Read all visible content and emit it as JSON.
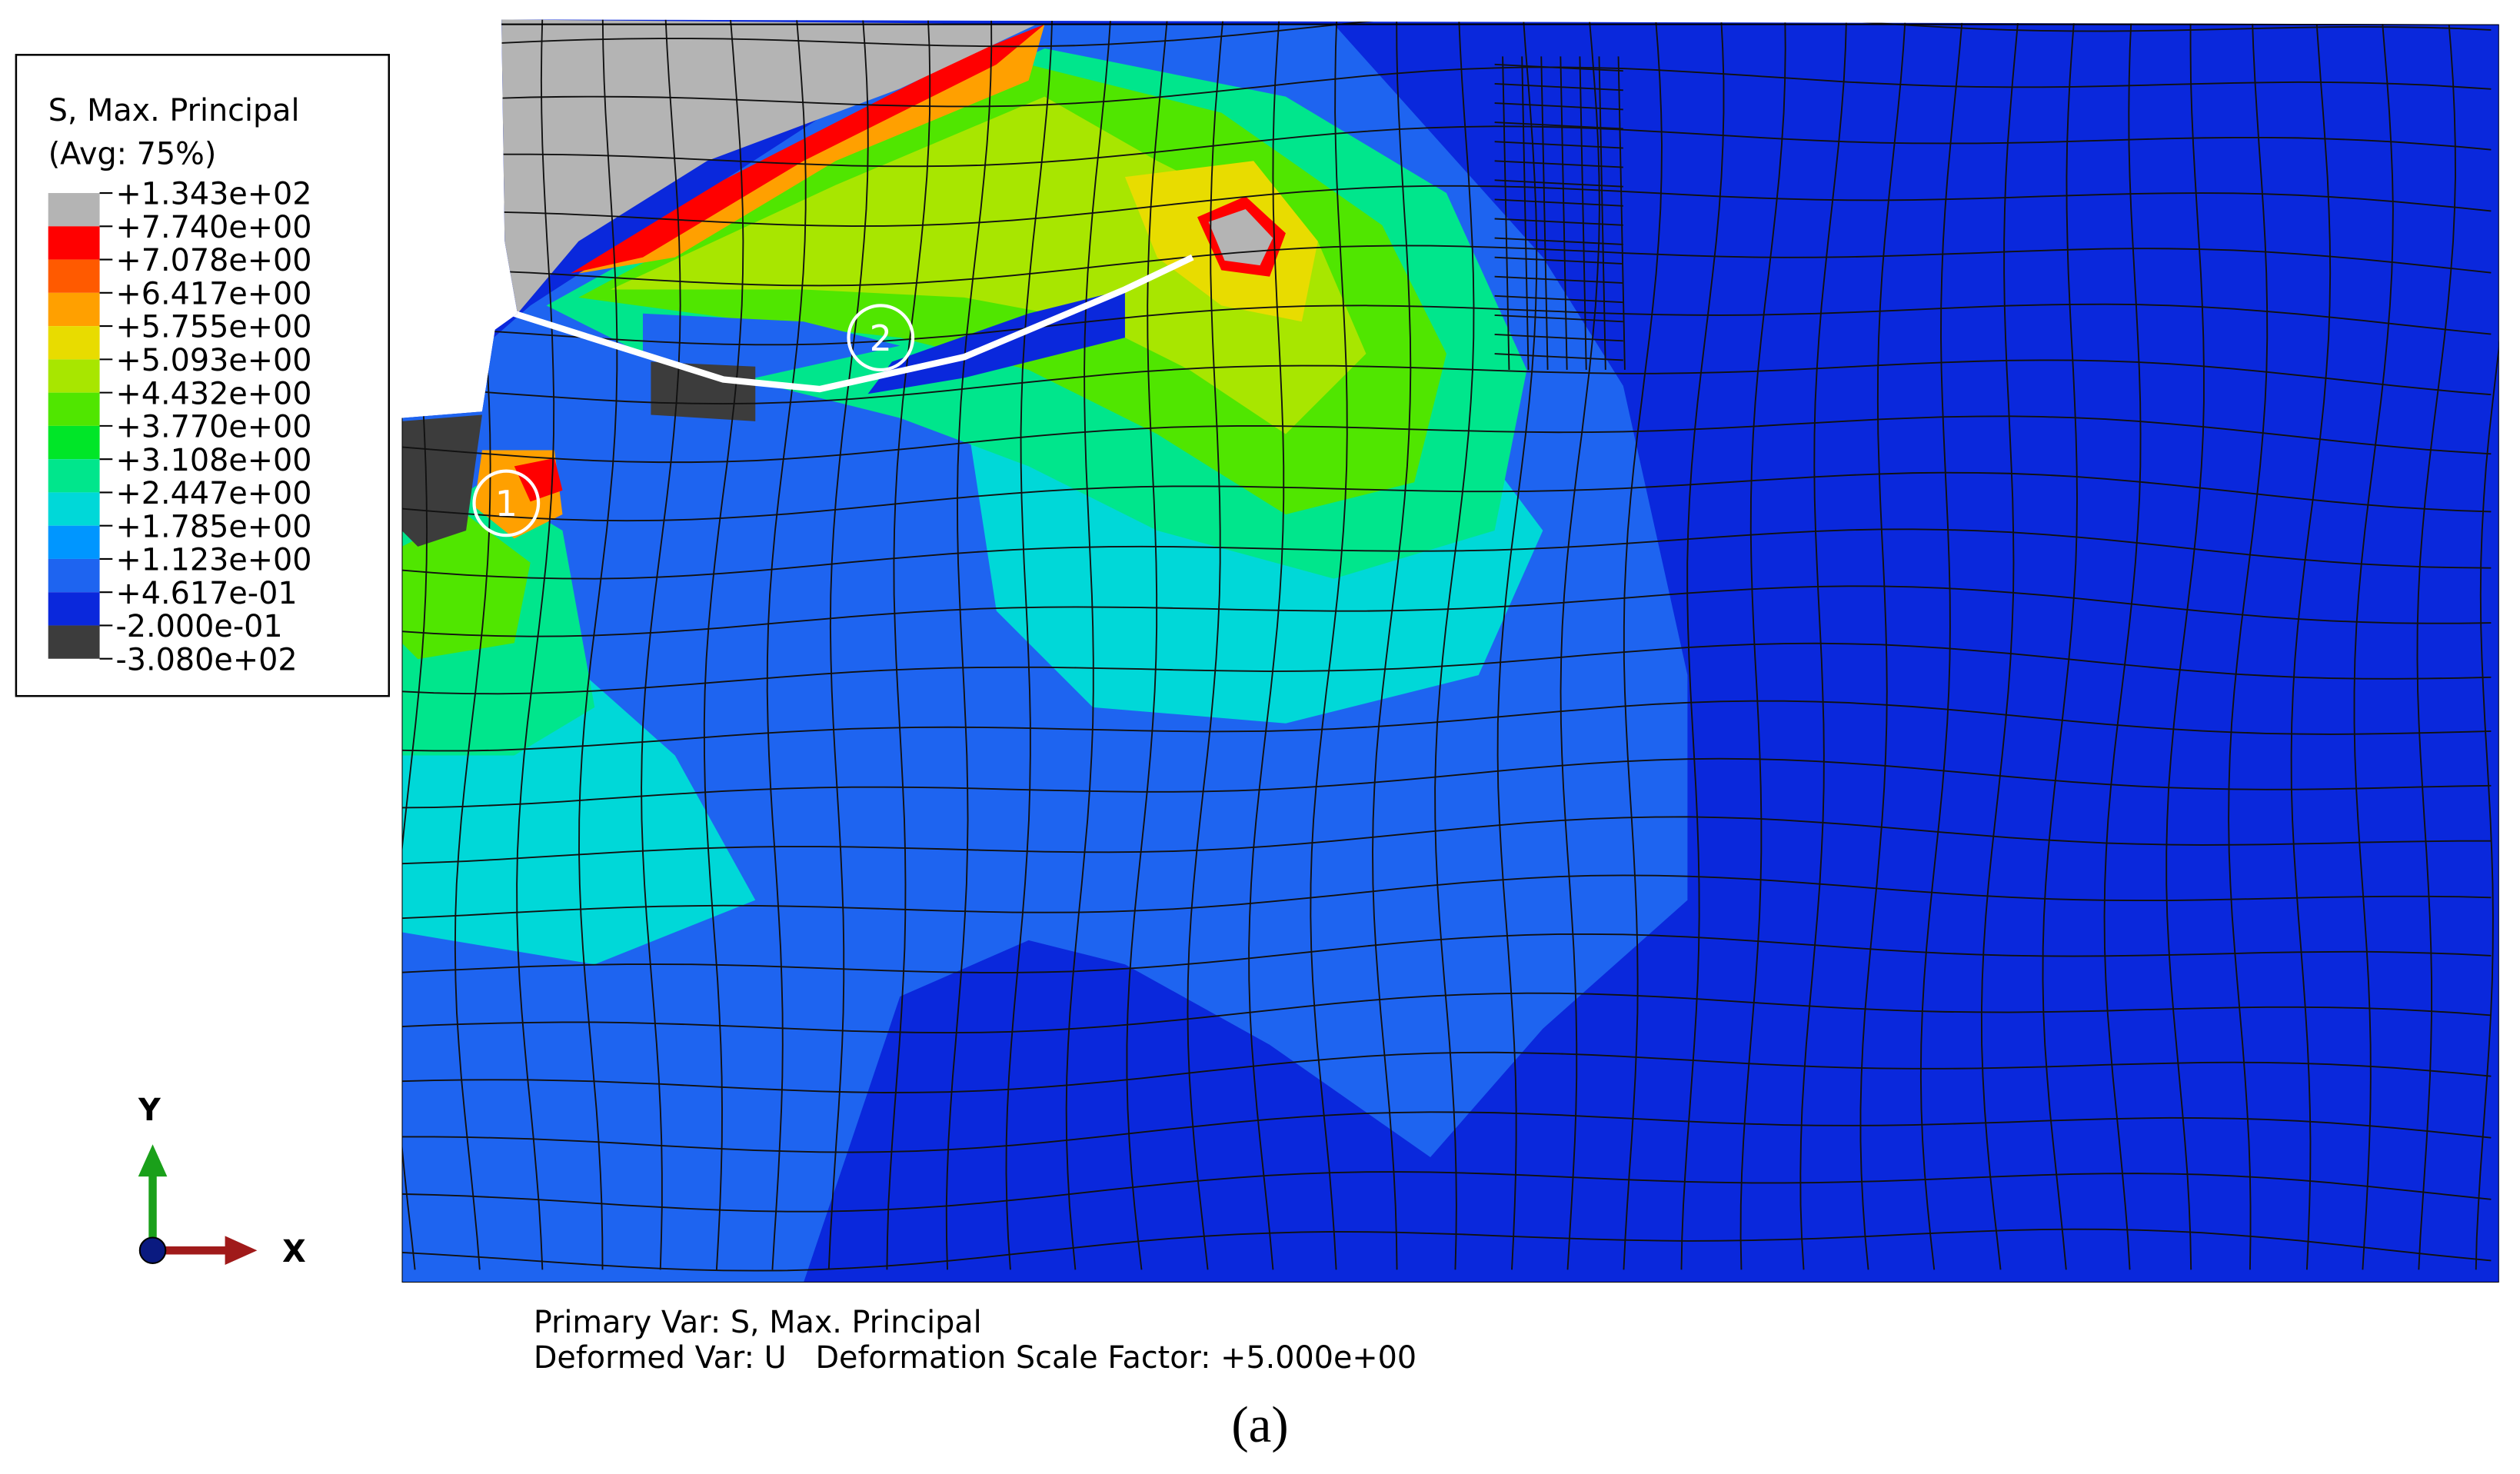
{
  "legend": {
    "title": "S, Max. Principal",
    "subtitle": "(Avg: 75%)",
    "levels": [
      "+1.343e+02",
      "+7.740e+00",
      "+7.078e+00",
      "+6.417e+00",
      "+5.755e+00",
      "+5.093e+00",
      "+4.432e+00",
      "+3.770e+00",
      "+3.108e+00",
      "+2.447e+00",
      "+1.785e+00",
      "+1.123e+00",
      "+4.617e-01",
      "-2.000e-01",
      "-3.080e+02"
    ],
    "colors": [
      "#b4b4b4",
      "#ff0000",
      "#ff5a00",
      "#ffa000",
      "#e8dc00",
      "#a8e600",
      "#50e600",
      "#00e628",
      "#00e68c",
      "#00d8d8",
      "#0096ff",
      "#1e64f0",
      "#0a28dc",
      "#3c3c3c"
    ]
  },
  "markers": [
    "1",
    "2"
  ],
  "triad": {
    "y": "Y",
    "x": "X"
  },
  "footer": {
    "primary": "Primary Var: S, Max. Principal",
    "deformed": "Deformed Var: U   Deformation Scale Factor: +5.000e+00"
  },
  "caption": "(a)"
}
